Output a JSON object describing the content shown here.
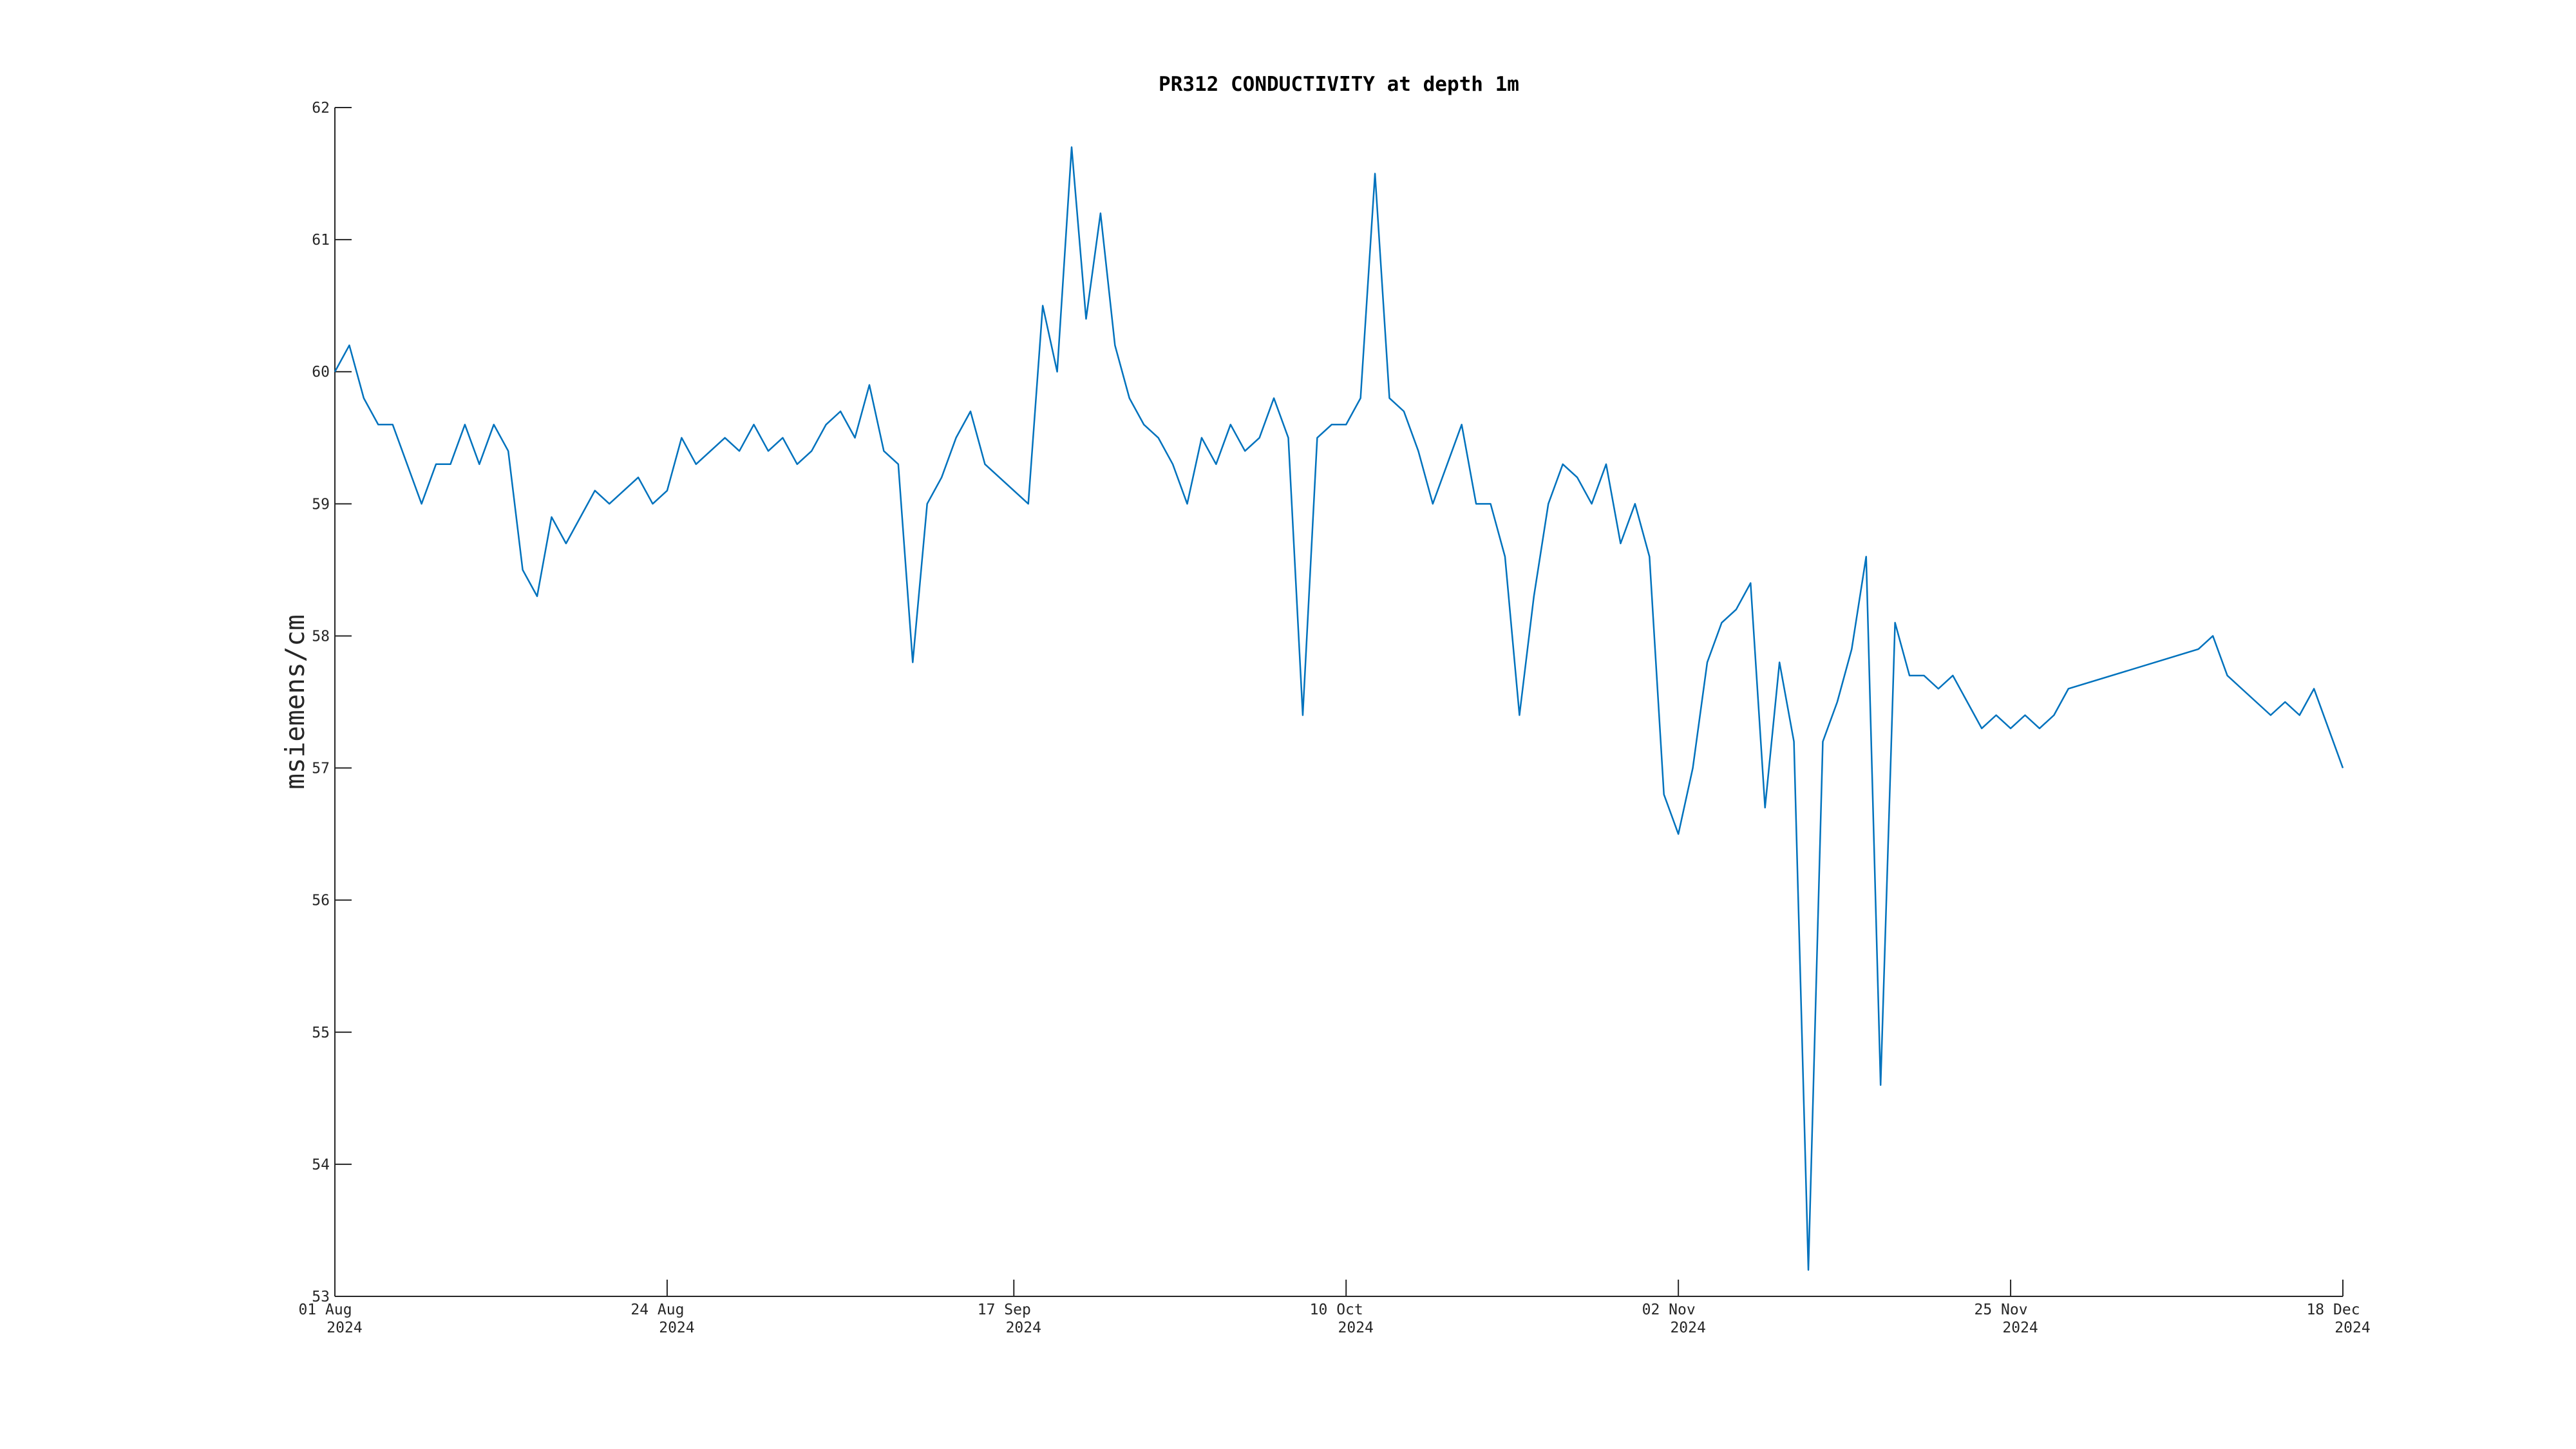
{
  "chart_data": {
    "type": "line",
    "title": "PR312 CONDUCTIVITY at depth 1m",
    "ylabel": "msiemens/cm",
    "color": "#0072bd",
    "x": [
      "2024-08-01",
      "2024-08-02",
      "2024-08-03",
      "2024-08-04",
      "2024-08-05",
      "2024-08-06",
      "2024-08-07",
      "2024-08-08",
      "2024-08-09",
      "2024-08-10",
      "2024-08-11",
      "2024-08-12",
      "2024-08-13",
      "2024-08-14",
      "2024-08-15",
      "2024-08-16",
      "2024-08-17",
      "2024-08-18",
      "2024-08-19",
      "2024-08-20",
      "2024-08-21",
      "2024-08-22",
      "2024-08-23",
      "2024-08-24",
      "2024-08-25",
      "2024-08-26",
      "2024-08-27",
      "2024-08-28",
      "2024-08-29",
      "2024-08-30",
      "2024-08-31",
      "2024-09-01",
      "2024-09-02",
      "2024-09-03",
      "2024-09-04",
      "2024-09-05",
      "2024-09-06",
      "2024-09-07",
      "2024-09-08",
      "2024-09-09",
      "2024-09-10",
      "2024-09-11",
      "2024-09-12",
      "2024-09-13",
      "2024-09-14",
      "2024-09-15",
      "2024-09-16",
      "2024-09-17",
      "2024-09-18",
      "2024-09-19",
      "2024-09-20",
      "2024-09-21",
      "2024-09-22",
      "2024-09-23",
      "2024-09-24",
      "2024-09-25",
      "2024-09-26",
      "2024-09-27",
      "2024-09-28",
      "2024-09-29",
      "2024-09-30",
      "2024-10-01",
      "2024-10-02",
      "2024-10-03",
      "2024-10-04",
      "2024-10-05",
      "2024-10-06",
      "2024-10-07",
      "2024-10-08",
      "2024-10-09",
      "2024-10-10",
      "2024-10-11",
      "2024-10-12",
      "2024-10-13",
      "2024-10-14",
      "2024-10-15",
      "2024-10-16",
      "2024-10-17",
      "2024-10-18",
      "2024-10-19",
      "2024-10-20",
      "2024-10-21",
      "2024-10-22",
      "2024-10-23",
      "2024-10-24",
      "2024-10-25",
      "2024-10-26",
      "2024-10-27",
      "2024-10-28",
      "2024-10-29",
      "2024-10-30",
      "2024-10-31",
      "2024-11-01",
      "2024-11-02",
      "2024-11-03",
      "2024-11-04",
      "2024-11-05",
      "2024-11-06",
      "2024-11-07",
      "2024-11-08",
      "2024-11-09",
      "2024-11-10",
      "2024-11-11",
      "2024-11-12",
      "2024-11-13",
      "2024-11-14",
      "2024-11-15",
      "2024-11-16",
      "2024-11-17",
      "2024-11-18",
      "2024-11-19",
      "2024-11-20",
      "2024-11-21",
      "2024-11-22",
      "2024-11-23",
      "2024-11-24",
      "2024-11-25",
      "2024-11-26",
      "2024-11-27",
      "2024-11-28",
      "2024-11-29",
      "2024-12-08",
      "2024-12-09",
      "2024-12-10",
      "2024-12-11",
      "2024-12-12",
      "2024-12-13",
      "2024-12-14",
      "2024-12-15",
      "2024-12-16",
      "2024-12-17",
      "2024-12-18"
    ],
    "values": [
      60.0,
      60.2,
      59.8,
      59.6,
      59.6,
      59.3,
      59.0,
      59.3,
      59.3,
      59.6,
      59.3,
      59.6,
      59.4,
      58.5,
      58.3,
      58.9,
      58.7,
      58.9,
      59.1,
      59.0,
      59.1,
      59.2,
      59.0,
      59.1,
      59.5,
      59.3,
      59.4,
      59.5,
      59.4,
      59.6,
      59.4,
      59.5,
      59.3,
      59.4,
      59.6,
      59.7,
      59.5,
      59.9,
      59.4,
      59.3,
      57.8,
      59.0,
      59.2,
      59.5,
      59.7,
      59.3,
      59.2,
      59.1,
      59.0,
      60.5,
      60.0,
      61.7,
      60.4,
      61.2,
      60.2,
      59.8,
      59.6,
      59.5,
      59.3,
      59.0,
      59.5,
      59.3,
      59.6,
      59.4,
      59.5,
      59.8,
      59.5,
      57.4,
      59.5,
      59.6,
      59.6,
      59.8,
      61.5,
      59.8,
      59.7,
      59.4,
      59.0,
      59.3,
      59.6,
      59.0,
      59.0,
      58.6,
      57.4,
      58.3,
      59.0,
      59.3,
      59.2,
      59.0,
      59.3,
      58.7,
      59.0,
      58.6,
      56.8,
      56.5,
      57.0,
      57.8,
      58.1,
      58.2,
      58.4,
      56.7,
      57.8,
      57.2,
      53.2,
      57.2,
      57.5,
      57.9,
      58.6,
      54.6,
      58.1,
      57.7,
      57.7,
      57.6,
      57.7,
      57.5,
      57.3,
      57.4,
      57.3,
      57.4,
      57.3,
      57.4,
      57.6,
      57.9,
      58.0,
      57.7,
      57.6,
      57.5,
      57.4,
      57.5,
      57.4,
      57.6,
      57.3,
      57.0
    ],
    "xlim": [
      "2024-08-01",
      "2024-12-18"
    ],
    "xticks": [
      {
        "value": "2024-08-01",
        "label": [
          "01 Aug",
          "2024"
        ]
      },
      {
        "value": "2024-08-24",
        "label": [
          "24 Aug",
          "2024"
        ]
      },
      {
        "value": "2024-09-17",
        "label": [
          "17 Sep",
          "2024"
        ]
      },
      {
        "value": "2024-10-10",
        "label": [
          "10 Oct",
          "2024"
        ]
      },
      {
        "value": "2024-11-02",
        "label": [
          "02 Nov",
          "2024"
        ]
      },
      {
        "value": "2024-11-25",
        "label": [
          "25 Nov",
          "2024"
        ]
      },
      {
        "value": "2024-12-18",
        "label": [
          "18 Dec",
          "2024"
        ]
      }
    ],
    "ylim": [
      53,
      62
    ],
    "yticks": [
      53,
      54,
      55,
      56,
      57,
      58,
      59,
      60,
      61,
      62
    ]
  }
}
